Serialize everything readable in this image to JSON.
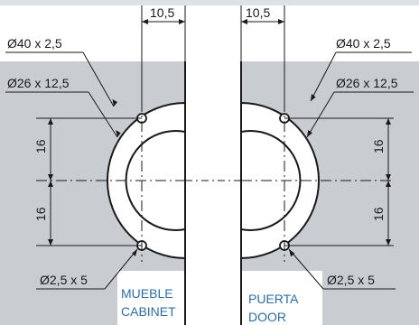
{
  "dimensions": {
    "left_offset": "10,5",
    "right_offset": "10,5",
    "left_outer_diameter": "Ø40 x 2,5",
    "right_outer_diameter": "Ø40 x 2,5",
    "left_inner_diameter": "Ø26 x 12,5",
    "right_inner_diameter": "Ø26 x 12,5",
    "left_upper_spacing": "16",
    "left_lower_spacing": "16",
    "right_upper_spacing": "16",
    "right_lower_spacing": "16",
    "left_screw_hole": "Ø2,5 x 5",
    "right_screw_hole": "Ø2,5 x 5"
  },
  "labels": {
    "left_line1": "MUEBLE",
    "left_line2": "CABINET",
    "right_line1": "PUERTA",
    "right_line2": "DOOR"
  },
  "colors": {
    "label_blue": "#2e6da4",
    "frame_gray": "#c9ccd1",
    "line": "#1a1a1a",
    "top_band": "#dde1e8"
  }
}
